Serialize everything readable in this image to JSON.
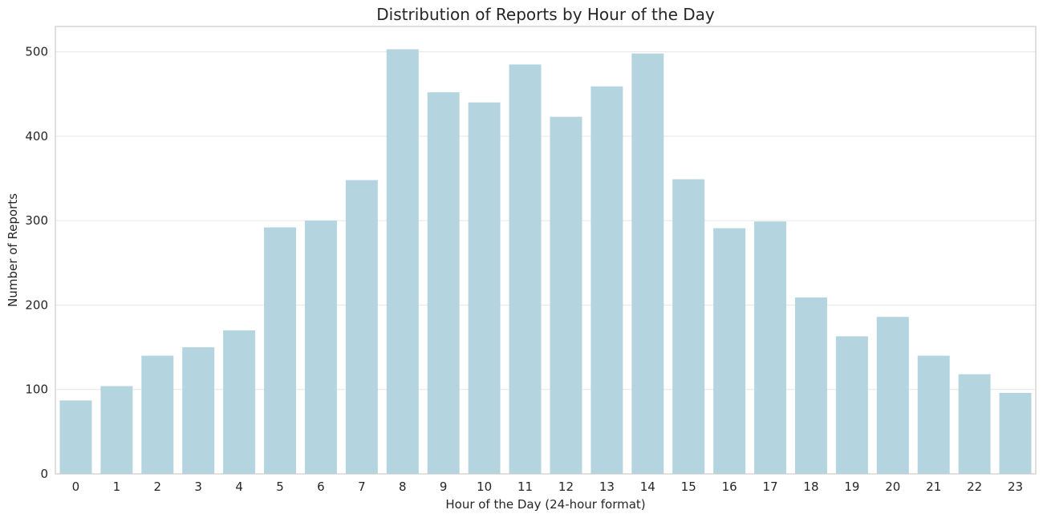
{
  "chart_data": {
    "type": "bar",
    "title": "Distribution of Reports by Hour of the Day",
    "xlabel": "Hour of the Day (24-hour format)",
    "ylabel": "Number of Reports",
    "categories": [
      "0",
      "1",
      "2",
      "3",
      "4",
      "5",
      "6",
      "7",
      "8",
      "9",
      "10",
      "11",
      "12",
      "13",
      "14",
      "15",
      "16",
      "17",
      "18",
      "19",
      "20",
      "21",
      "22",
      "23"
    ],
    "values": [
      87,
      104,
      140,
      150,
      170,
      292,
      300,
      348,
      503,
      452,
      440,
      485,
      423,
      459,
      498,
      349,
      291,
      299,
      209,
      163,
      186,
      140,
      118,
      96
    ],
    "ylim": [
      0,
      530
    ],
    "yticks": [
      0,
      100,
      200,
      300,
      400,
      500
    ],
    "grid": "horizontal",
    "bar_color": "#b4d5e0"
  }
}
